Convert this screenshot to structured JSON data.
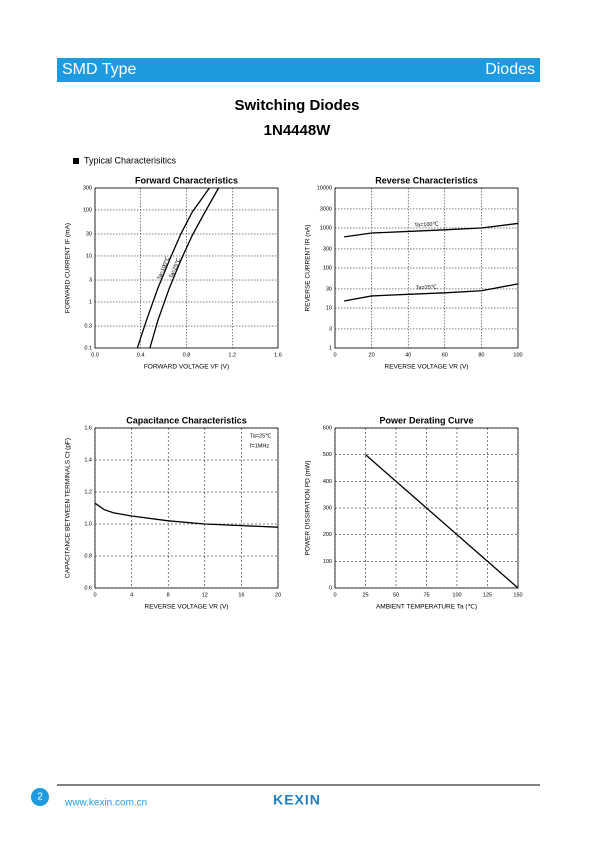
{
  "header": {
    "left": "SMD Type",
    "right": "Diodes"
  },
  "title": "Switching Diodes",
  "part": "1N4448W",
  "section": "Typical  Characterisitics",
  "chart_data": [
    {
      "type": "line",
      "title": "Forward    Characteristics",
      "x_label": "FORWARD VOLTAGE   VF   (V)",
      "y_label": "FORWARD CURRENT   IF   (mA)",
      "log_y": true,
      "grid": true,
      "xlim": [
        0,
        1.6
      ],
      "xticks": [
        {
          "value": 0,
          "label": "0.0"
        },
        0.4,
        0.8,
        1.2,
        1.6
      ],
      "ylim": [
        0.1,
        300
      ],
      "yticks": [
        0.1,
        0.3,
        1,
        3,
        10,
        30,
        100,
        300
      ],
      "series": [
        {
          "name": "Ta=100℃",
          "color": "#000000",
          "x": [
            0.37,
            0.45,
            0.55,
            0.65,
            0.75,
            0.85,
            1.0
          ],
          "values": [
            0.1,
            0.4,
            2,
            8,
            30,
            90,
            300
          ]
        },
        {
          "name": "Ta=25℃",
          "color": "#000000",
          "x": [
            0.48,
            0.55,
            0.65,
            0.75,
            0.85,
            0.95,
            1.08
          ],
          "values": [
            0.1,
            0.4,
            2,
            8,
            28,
            80,
            300
          ]
        }
      ]
    },
    {
      "type": "line",
      "title": "Reverse    Characteristics",
      "x_label": "REVERSE VOLTAGE   VR   (V)",
      "y_label": "REVERSE CURRENT   IR   (nA)",
      "log_y": true,
      "grid": true,
      "xlim": [
        0,
        100
      ],
      "xticks": [
        0,
        20,
        40,
        60,
        80,
        100
      ],
      "ylim": [
        1,
        10000
      ],
      "yticks": [
        1,
        3,
        10,
        30,
        100,
        300,
        1000,
        3000,
        10000
      ],
      "series": [
        {
          "name": "Ta=100℃",
          "color": "#000000",
          "x": [
            5,
            20,
            40,
            60,
            80,
            100
          ],
          "values": [
            600,
            750,
            820,
            900,
            1000,
            1300
          ]
        },
        {
          "name": "Ta=25℃",
          "color": "#000000",
          "x": [
            5,
            20,
            40,
            60,
            80,
            100
          ],
          "values": [
            15,
            20,
            22,
            24,
            27,
            40
          ]
        }
      ]
    },
    {
      "type": "line",
      "title": "Capacitance Characteristics",
      "x_label": "REVERSE VOLTAGE   VR   (V)",
      "y_label": "CAPACITANCE BETWEEN TERMINALS  Ct  (pF)",
      "log_y": false,
      "grid": true,
      "annotations": [
        "Ta=25℃",
        "f=1MHz"
      ],
      "xlim": [
        0,
        20
      ],
      "xticks": [
        0,
        4,
        8,
        12,
        16,
        20
      ],
      "ylim": [
        0.6,
        1.6
      ],
      "yticks": [
        0.6,
        0.8,
        {
          "value": 1,
          "label": "1.0"
        },
        1.2,
        1.4,
        1.6
      ],
      "series": [
        {
          "color": "#000000",
          "x": [
            0,
            1,
            2,
            4,
            8,
            12,
            16,
            20
          ],
          "values": [
            1.13,
            1.09,
            1.07,
            1.05,
            1.02,
            1.0,
            0.99,
            0.98
          ]
        }
      ]
    },
    {
      "type": "line",
      "title": "Power Derating Curve",
      "x_label": "AMBIENT TEMPERATURE   Ta   (℃)",
      "y_label": "POWER DISSIPATION   PD   (mW)",
      "log_y": false,
      "grid": true,
      "xlim": [
        0,
        150
      ],
      "xticks": [
        0,
        25,
        50,
        75,
        100,
        125,
        150
      ],
      "ylim": [
        0,
        600
      ],
      "yticks": [
        0,
        100,
        200,
        300,
        400,
        500,
        600
      ],
      "series": [
        {
          "color": "#000000",
          "x": [
            25,
            150
          ],
          "values": [
            500,
            0
          ]
        }
      ]
    }
  ],
  "footer": {
    "page": "2",
    "url": "www.kexin.com.cn",
    "logo": "KEXIN"
  }
}
